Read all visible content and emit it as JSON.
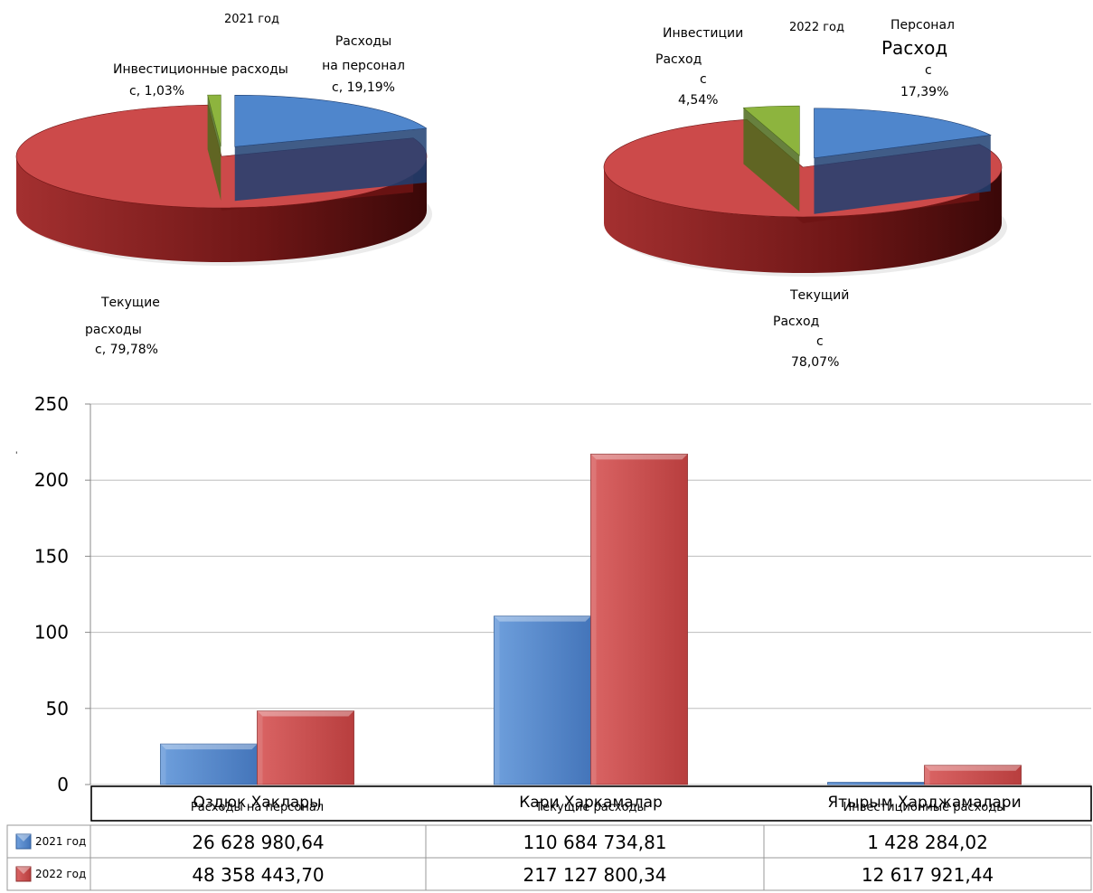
{
  "colors": {
    "blue": "#4F86CC",
    "blue_dark": "#1E3F72",
    "red": "#CC4A4A",
    "red_dark": "#6E1414",
    "green": "#8DB43E",
    "green_dark": "#4C6A1C"
  },
  "pie_2021": {
    "title": "2021 год",
    "label_personnel": [
      "Расходы",
      "на персонал",
      "с, 19,19%"
    ],
    "label_invest": [
      "Инвестиционные расходы",
      "с, 1,03%"
    ],
    "label_current": [
      "Текущие",
      "расходы",
      "с, 79,78%"
    ]
  },
  "pie_2022": {
    "title": "2022 год",
    "label_invest": [
      "Инвестиции",
      "Расход",
      "с",
      "4,54%"
    ],
    "label_personnel": [
      "Персонал",
      "Расход",
      "с",
      "17,39%"
    ],
    "label_current": [
      "Текущий",
      "Расход",
      "с",
      "78,07%"
    ]
  },
  "bar": {
    "stray_mark": "'",
    "category_overlays": [
      "Расходы на персонал",
      "Текущие расходы",
      "Инвестиционные расходы"
    ],
    "table_rows": [
      {
        "legend": "2021 год",
        "cells": [
          "26 628 980,64",
          "110 684 734,81",
          "1 428 284,02"
        ]
      },
      {
        "legend": "2022 год",
        "cells": [
          "48 358 443,70",
          "217 127 800,34",
          "12 617 921,44"
        ]
      }
    ]
  },
  "chart_data": [
    {
      "type": "pie",
      "title": "2021 год",
      "labels": [
        "Расходы на персонал",
        "Текущие расходы",
        "Инвестиционные расходы"
      ],
      "values": [
        19.19,
        79.78,
        1.03
      ],
      "colors": [
        "#4F86CC",
        "#CC4A4A",
        "#8DB43E"
      ],
      "style": "3d-exploded"
    },
    {
      "type": "pie",
      "title": "2022 год",
      "labels": [
        "Персонал Расходс",
        "Текущий Расходс",
        "Инвестиции Расходс"
      ],
      "values": [
        17.39,
        78.07,
        4.54
      ],
      "colors": [
        "#4F86CC",
        "#CC4A4A",
        "#8DB43E"
      ],
      "style": "3d-exploded"
    },
    {
      "type": "bar",
      "categories": [
        "Оздюк Хаклары",
        "Кари Харкамалар",
        "Ятырым Харджамалари"
      ],
      "series": [
        {
          "name": "2021 год",
          "values": [
            26.63,
            110.68,
            1.43
          ]
        },
        {
          "name": "2022 год",
          "values": [
            48.36,
            217.13,
            12.62
          ]
        }
      ],
      "yticks": [
        0,
        50,
        100,
        150,
        200,
        250
      ],
      "ylim": [
        0,
        250
      ],
      "grid": true,
      "legend": "data-table"
    }
  ]
}
